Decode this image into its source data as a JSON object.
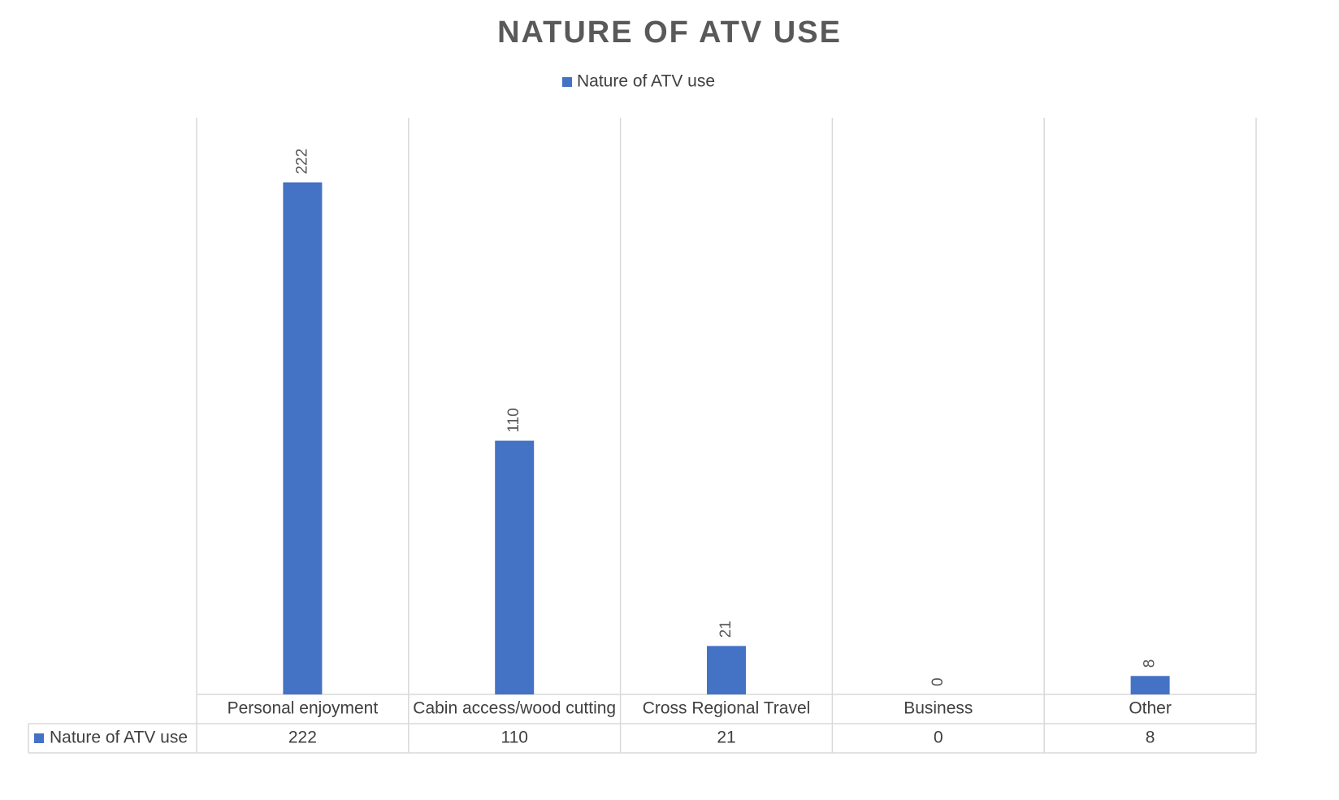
{
  "chart_data": {
    "type": "bar",
    "title": "NATURE OF ATV USE",
    "categories": [
      "Personal enjoyment",
      "Cabin access/wood cutting",
      "Cross Regional Travel",
      "Business",
      "Other"
    ],
    "series": [
      {
        "name": "Nature of ATV use",
        "color": "#4472c4",
        "values": [
          222,
          110,
          21,
          0,
          8
        ]
      }
    ],
    "ylim": [
      0,
      250
    ],
    "legend": "top",
    "data_table": true
  }
}
